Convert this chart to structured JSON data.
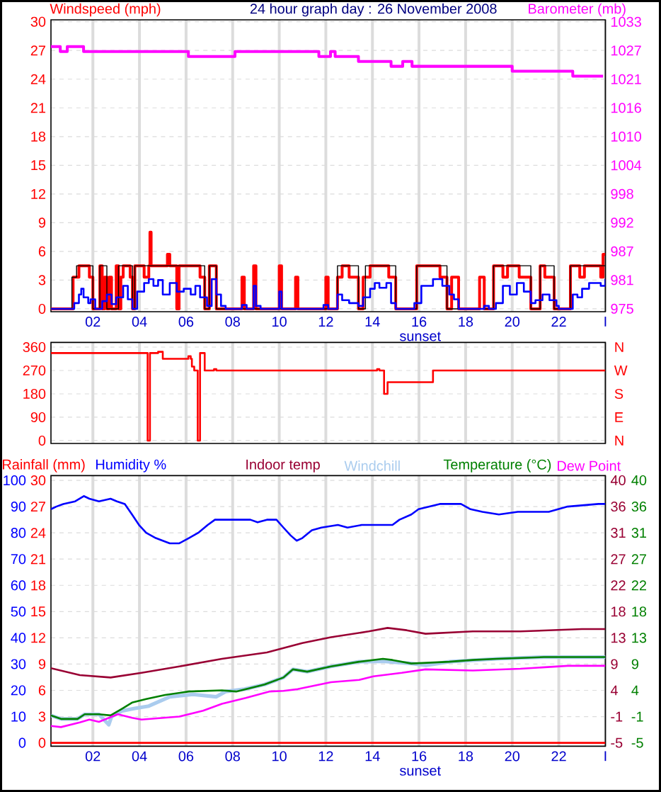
{
  "chart_data": [
    {
      "type": "step",
      "title": "24 hour graph day : 26 November 2008",
      "ylabel": "Windspeed (mph)",
      "y2label": "Barometer (mb)",
      "xlim": [
        0.2,
        24
      ],
      "xticks": [
        {
          "value": 2,
          "label": "02"
        },
        {
          "value": 4,
          "label": "04"
        },
        {
          "value": 6,
          "label": "06"
        },
        {
          "value": 8,
          "label": "08"
        },
        {
          "value": 10,
          "label": "10"
        },
        {
          "value": 12,
          "label": "12"
        },
        {
          "value": 14,
          "label": "14"
        },
        {
          "value": 16,
          "label": "16"
        },
        {
          "value": 18,
          "label": "18"
        },
        {
          "value": 20,
          "label": "20"
        },
        {
          "value": 22,
          "label": "22"
        },
        {
          "value": 24,
          "label": "I"
        }
      ],
      "ylim": [
        -0.3,
        30.2
      ],
      "yticks": [
        0,
        3,
        6,
        9,
        12,
        15,
        18,
        21,
        24,
        27,
        30
      ],
      "y2lim": [
        974.4,
        1033.4
      ],
      "y2ticks": [
        975,
        {
          "value": 980.8,
          "label": "981"
        },
        {
          "value": 986.6,
          "label": "987"
        },
        {
          "value": 992.4,
          "label": "992"
        },
        {
          "value": 998.2,
          "label": "998"
        },
        1004,
        {
          "value": 1009.8,
          "label": "1010"
        },
        {
          "value": 1015.6,
          "label": "1016"
        },
        {
          "value": 1021.4,
          "label": "1021"
        },
        {
          "value": 1027.2,
          "label": "1027"
        },
        1033
      ],
      "grid": true,
      "annotations": [
        "sunset"
      ],
      "series": [
        {
          "color": "#ff0000",
          "x": [
            0.2,
            1.15,
            1.4,
            1.85,
            2.0,
            2.3,
            2.4,
            2.5,
            2.6,
            2.7,
            2.8,
            3.0,
            3.1,
            3.2,
            3.3,
            3.6,
            3.7,
            3.8,
            4.2,
            4.4,
            4.45,
            4.5,
            5.2,
            5.3,
            5.6,
            5.7,
            6.6,
            6.8,
            7.0,
            7.3,
            8.4,
            8.5,
            8.9,
            9.0,
            10.0,
            10.1,
            10.7,
            10.8,
            12.0,
            12.1,
            12.5,
            12.7,
            13.0,
            13.4,
            13.6,
            13.9,
            14.7,
            15.0,
            15.9,
            16.9,
            17.2,
            17.4,
            17.7,
            18.6,
            18.8,
            19.2,
            19.6,
            19.8,
            20.3,
            20.8,
            21.2,
            21.4,
            21.8,
            22.5,
            22.9,
            23.1,
            23.8,
            23.9,
            24.0
          ],
          "values": [
            0,
            3.3,
            4.5,
            3.3,
            0,
            4.5,
            0,
            3.3,
            0,
            3.3,
            0,
            4.5,
            0,
            3.3,
            4.5,
            3.3,
            0,
            4.5,
            3.3,
            4.5,
            8.0,
            4.5,
            5.7,
            4.5,
            0,
            4.5,
            3.3,
            0,
            4.5,
            0,
            3.3,
            0,
            4.5,
            0,
            4.5,
            0,
            3.3,
            0,
            3.3,
            0,
            3.3,
            4.5,
            3.3,
            0,
            3.3,
            4.5,
            3.3,
            0,
            4.5,
            3.3,
            0,
            3.3,
            0,
            3.3,
            0,
            4.5,
            3.3,
            4.5,
            3.3,
            0,
            4.5,
            3.3,
            0,
            4.5,
            3.3,
            4.5,
            3.3,
            5.7,
            5.7
          ]
        },
        {
          "color": "#000000",
          "x": [
            0.2,
            1.1,
            1.3,
            2.0,
            2.3,
            2.6,
            3.1,
            3.7,
            3.8,
            6.8,
            7.0,
            7.3,
            12.5,
            13.4,
            13.7,
            15.0,
            15.9,
            17.2,
            19.2,
            20.8,
            21.2,
            21.8,
            22.5,
            24.0
          ],
          "values": [
            0,
            3.3,
            4.5,
            0,
            4.5,
            0,
            4.5,
            0,
            4.5,
            0,
            4.5,
            0,
            4.5,
            0,
            4.5,
            0,
            4.5,
            0,
            4.5,
            0,
            4.5,
            0,
            4.5,
            4.5
          ]
        },
        {
          "color": "#0000ff",
          "x": [
            0.2,
            1.2,
            1.4,
            1.5,
            1.6,
            1.8,
            1.9,
            2.1,
            2.4,
            2.6,
            2.8,
            3.0,
            3.3,
            3.5,
            3.7,
            3.9,
            4.2,
            4.4,
            4.6,
            4.8,
            5.0,
            5.3,
            5.6,
            5.9,
            6.2,
            6.4,
            6.6,
            6.9,
            7.1,
            7.3,
            7.5,
            7.7,
            8.4,
            8.6,
            8.9,
            9.0,
            9.2,
            10.0,
            10.1,
            11.9,
            12.1,
            12.5,
            12.7,
            13.0,
            13.4,
            13.6,
            13.9,
            14.1,
            14.3,
            14.6,
            14.8,
            15.0,
            15.8,
            16.1,
            16.6,
            17.0,
            17.3,
            17.5,
            17.7,
            18.8,
            19.0,
            19.3,
            19.6,
            19.9,
            20.2,
            20.5,
            20.8,
            21.0,
            21.3,
            21.6,
            21.9,
            22.0,
            22.6,
            22.8,
            23.0,
            23.3,
            23.6,
            23.8,
            24.0
          ],
          "values": [
            0,
            0.6,
            1.5,
            2.1,
            1.2,
            0.6,
            1.0,
            0,
            0.8,
            1.5,
            0.5,
            1.2,
            2.4,
            1.0,
            0,
            1.8,
            2.7,
            3.1,
            2.4,
            3.0,
            1.5,
            2.7,
            1.8,
            2.1,
            1.5,
            2.4,
            1.2,
            0.3,
            3.1,
            1.5,
            0.3,
            0,
            0.4,
            0,
            2.4,
            0.3,
            0,
            1.8,
            0,
            0.4,
            0,
            1.5,
            0.9,
            0.6,
            0.3,
            1.2,
            2.1,
            2.7,
            2.2,
            2.7,
            0.6,
            0,
            0.6,
            2.4,
            3.1,
            2.4,
            1.5,
            1.0,
            0,
            0.3,
            0,
            0.6,
            2.4,
            1.5,
            2.7,
            1.8,
            0.6,
            0.9,
            1.5,
            0.9,
            0.3,
            0,
            1.5,
            1.2,
            2.1,
            2.7,
            2.7,
            2.4,
            3.1
          ]
        },
        {
          "color": "#ff00ff",
          "axis": "y2",
          "x": [
            0.2,
            0.6,
            0.9,
            1.6,
            6.1,
            8.1,
            11.7,
            12.2,
            12.4,
            13.4,
            14.8,
            15.3,
            15.7,
            20.0,
            22.6,
            23.9
          ],
          "values": [
            1028,
            1027,
            1028,
            1027,
            1026,
            1027,
            1026,
            1027,
            1026,
            1025,
            1024,
            1025,
            1024,
            1023,
            1022,
            1022
          ]
        }
      ]
    },
    {
      "type": "step",
      "xlim": [
        0.2,
        24
      ],
      "xticks": [
        2,
        4,
        6,
        8,
        10,
        12,
        14,
        16,
        18,
        20,
        22,
        24
      ],
      "ylim": [
        -11,
        378
      ],
      "yticks": [
        0,
        90,
        180,
        270,
        360
      ],
      "annotations": [
        "N",
        "W",
        "S",
        "E",
        "N"
      ],
      "tick_labels": "y",
      "grid": true,
      "series": [
        {
          "color": "#ff0000",
          "x": [
            0.2,
            4.35,
            4.45,
            4.8,
            5.0,
            6.1,
            6.2,
            6.25,
            6.35,
            6.5,
            6.6,
            6.8,
            7.2,
            7.3,
            14.2,
            14.3,
            14.5,
            14.65,
            16.6,
            24.0
          ],
          "values": [
            337,
            0,
            337,
            342,
            315,
            325,
            315,
            285,
            270,
            0,
            337,
            270,
            275,
            270,
            275,
            270,
            180,
            225,
            270,
            270
          ]
        }
      ]
    },
    {
      "type": "line",
      "xlim": [
        0.2,
        24
      ],
      "xticks": [
        {
          "value": 2,
          "label": "02"
        },
        {
          "value": 4,
          "label": "04"
        },
        {
          "value": 6,
          "label": "06"
        },
        {
          "value": 8,
          "label": "08"
        },
        {
          "value": 10,
          "label": "10"
        },
        {
          "value": 12,
          "label": "12"
        },
        {
          "value": 14,
          "label": "14"
        },
        {
          "value": 16,
          "label": "16"
        },
        {
          "value": 18,
          "label": "18"
        },
        {
          "value": 20,
          "label": "20"
        },
        {
          "value": 22,
          "label": "22"
        },
        {
          "value": 24,
          "label": "I"
        }
      ],
      "ylim": [
        -1.3,
        101.8
      ],
      "yticks": [
        0,
        10,
        20,
        30,
        40,
        50,
        60,
        70,
        80,
        90,
        100
      ],
      "y3lim": [
        -0.39,
        30.54
      ],
      "y3ticks": [
        0,
        3,
        6,
        9,
        12,
        15,
        18,
        21,
        24,
        27,
        30
      ],
      "y2lim": [
        -5.58,
        40.8
      ],
      "y2ticks": [
        -5,
        {
          "value": -0.5,
          "label": "-1"
        },
        4,
        {
          "value": 8.5,
          "label": "9"
        },
        13,
        {
          "value": 17.5,
          "label": "18"
        },
        22,
        {
          "value": 26.5,
          "label": "27"
        },
        31,
        {
          "value": 35.5,
          "label": "36"
        },
        40
      ],
      "grid": true,
      "legend": "top",
      "annotations": [
        "sunset",
        "40",
        "36",
        "31",
        "27",
        "22",
        "18",
        "13",
        "9",
        "4",
        "-1",
        "-5"
      ],
      "series": [
        {
          "name": "Rainfall (mm)",
          "color": "#ff0000",
          "axis": "y3",
          "x": [
            0.2,
            24.0
          ],
          "values": [
            0,
            0
          ]
        },
        {
          "name": "Humidity %",
          "color": "#0000ff",
          "x": [
            0.2,
            0.43,
            0.73,
            1.24,
            1.61,
            1.85,
            2.26,
            2.76,
            3.03,
            3.37,
            3.68,
            3.98,
            4.29,
            4.7,
            5.3,
            5.71,
            6.12,
            6.52,
            6.93,
            7.24,
            7.54,
            8.76,
            9.07,
            9.47,
            9.88,
            10.18,
            10.49,
            10.75,
            10.99,
            11.4,
            11.81,
            12.52,
            12.93,
            13.54,
            13.84,
            14.86,
            15.16,
            15.67,
            15.98,
            16.89,
            17.8,
            18.21,
            18.72,
            19.43,
            20.24,
            20.65,
            21.57,
            22.38,
            23.7,
            24.0
          ],
          "values": [
            89,
            90,
            91,
            92,
            94,
            93,
            92,
            93,
            92,
            91,
            87,
            83,
            80,
            78,
            76,
            76,
            78,
            80,
            83,
            85,
            85,
            85,
            84,
            85,
            85,
            82,
            79,
            77,
            78,
            81,
            82,
            83,
            82,
            83,
            83,
            83,
            85,
            87,
            89,
            91,
            91,
            89,
            88,
            87,
            88,
            88,
            88,
            90,
            91,
            91
          ]
        },
        {
          "name": "Indoor temp",
          "color": "#990033",
          "axis": "y2",
          "x": [
            0.2,
            1.44,
            2.76,
            4.09,
            5.71,
            7.54,
            9.47,
            10.99,
            12.22,
            13.84,
            14.65,
            15.47,
            16.28,
            18.31,
            20.35,
            22.99,
            24.0
          ],
          "values": [
            7.8,
            6.6,
            6.2,
            7.0,
            8.1,
            9.4,
            10.5,
            12.1,
            13.1,
            14.1,
            14.7,
            14.3,
            13.7,
            14.1,
            14.1,
            14.5,
            14.5
          ]
        },
        {
          "name": "Windchill",
          "color": "#aaccee",
          "axis": "y2",
          "x": [
            0.2,
            0.63,
            1.34,
            1.65,
            2.26,
            2.68,
            2.8,
            3.27,
            3.8,
            4.4,
            5.3,
            6.3,
            7.3,
            7.7,
            8.5,
            9.37,
            10.18,
            10.59,
            11.2,
            12.22,
            13.43,
            14.45,
            15.67,
            16.3,
            17.3,
            19.33,
            21.36,
            24.0
          ],
          "values": [
            -0.3,
            -0.9,
            -0.9,
            -0.1,
            -0.1,
            -1.9,
            -0.5,
            0.5,
            0.9,
            1.3,
            2.9,
            3.3,
            2.9,
            3.8,
            4.2,
            5.0,
            6.2,
            7.6,
            7.2,
            8.1,
            8.9,
            9.0,
            8.6,
            8.3,
            8.9,
            9.4,
            9.7,
            9.7
          ]
        },
        {
          "name": "Temperature (°C)",
          "color": "#008000",
          "axis": "y2",
          "x": [
            0.2,
            0.63,
            1.34,
            1.65,
            2.26,
            2.76,
            3.27,
            3.68,
            4.29,
            5.1,
            6.12,
            7.54,
            8.15,
            9.37,
            10.18,
            10.59,
            11.2,
            12.22,
            13.43,
            14.45,
            14.86,
            15.67,
            17.3,
            18.31,
            19.33,
            21.36,
            24.0
          ],
          "values": [
            -0.3,
            -0.9,
            -0.9,
            -0.1,
            -0.1,
            -0.3,
            0.9,
            1.9,
            2.5,
            3.2,
            3.8,
            4.0,
            3.8,
            5.0,
            6.2,
            7.6,
            7.2,
            8.1,
            8.9,
            9.4,
            9.2,
            8.6,
            8.9,
            9.2,
            9.4,
            9.7,
            9.7
          ]
        },
        {
          "name": "Dew Point",
          "color": "#ff00ff",
          "axis": "y2",
          "x": [
            0.2,
            0.63,
            1.44,
            1.85,
            2.26,
            3.07,
            3.68,
            4.09,
            5.71,
            6.73,
            7.54,
            8.56,
            9.57,
            10.18,
            10.79,
            12.22,
            13.43,
            14.04,
            15.26,
            16.28,
            18.31,
            20.35,
            22.38,
            24.0
          ],
          "values": [
            -2.1,
            -2.3,
            -1.5,
            -1.0,
            -1.4,
            -0.1,
            -0.7,
            -1.0,
            -0.5,
            0.5,
            1.7,
            2.7,
            3.8,
            3.9,
            4.2,
            5.4,
            5.8,
            6.4,
            7.0,
            7.6,
            7.4,
            7.7,
            8.2,
            8.2
          ]
        }
      ]
    }
  ]
}
